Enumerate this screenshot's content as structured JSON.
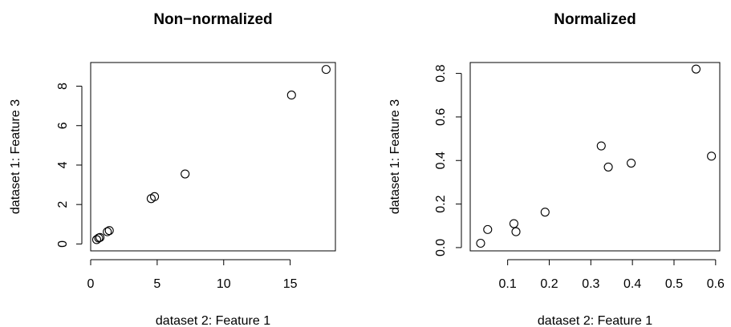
{
  "chart_data": [
    {
      "type": "scatter",
      "title": "Non−normalized",
      "xlabel": "dataset 2: Feature 1",
      "ylabel": "dataset 1: Feature 3",
      "xlim": [
        0,
        18.4
      ],
      "ylim": [
        -0.35,
        9.2
      ],
      "x_ticks": [
        0,
        5,
        10,
        15
      ],
      "x_tick_labels": [
        "0",
        "5",
        "10",
        "15"
      ],
      "y_ticks": [
        0,
        2,
        4,
        6,
        8
      ],
      "y_tick_labels": [
        "0",
        "2",
        "4",
        "6",
        "8"
      ],
      "grid": false,
      "marker": "open-circle",
      "color": "#000000",
      "points": [
        {
          "x": 0.45,
          "y": 0.22
        },
        {
          "x": 0.6,
          "y": 0.3
        },
        {
          "x": 0.7,
          "y": 0.33
        },
        {
          "x": 1.25,
          "y": 0.62
        },
        {
          "x": 1.4,
          "y": 0.68
        },
        {
          "x": 4.55,
          "y": 2.3
        },
        {
          "x": 4.8,
          "y": 2.4
        },
        {
          "x": 7.1,
          "y": 3.55
        },
        {
          "x": 15.1,
          "y": 7.55
        },
        {
          "x": 17.7,
          "y": 8.85
        }
      ]
    },
    {
      "type": "scatter",
      "title": "Normalized",
      "xlabel": "dataset 2: Feature 1",
      "ylabel": "dataset 1: Feature 3",
      "xlim": [
        0.01,
        0.61
      ],
      "ylim": [
        -0.015,
        0.85
      ],
      "x_ticks": [
        0.1,
        0.2,
        0.3,
        0.4,
        0.5,
        0.6
      ],
      "x_tick_labels": [
        "0.1",
        "0.2",
        "0.3",
        "0.4",
        "0.5",
        "0.6"
      ],
      "y_ticks": [
        0.0,
        0.2,
        0.4,
        0.6,
        0.8
      ],
      "y_tick_labels": [
        "0.0",
        "0.2",
        "0.4",
        "0.6",
        "0.8"
      ],
      "grid": false,
      "marker": "open-circle",
      "color": "#000000",
      "points": [
        {
          "x": 0.035,
          "y": 0.02
        },
        {
          "x": 0.052,
          "y": 0.083
        },
        {
          "x": 0.115,
          "y": 0.11
        },
        {
          "x": 0.12,
          "y": 0.073
        },
        {
          "x": 0.19,
          "y": 0.163
        },
        {
          "x": 0.325,
          "y": 0.467
        },
        {
          "x": 0.342,
          "y": 0.37
        },
        {
          "x": 0.397,
          "y": 0.388
        },
        {
          "x": 0.553,
          "y": 0.82
        },
        {
          "x": 0.59,
          "y": 0.42
        }
      ]
    }
  ]
}
